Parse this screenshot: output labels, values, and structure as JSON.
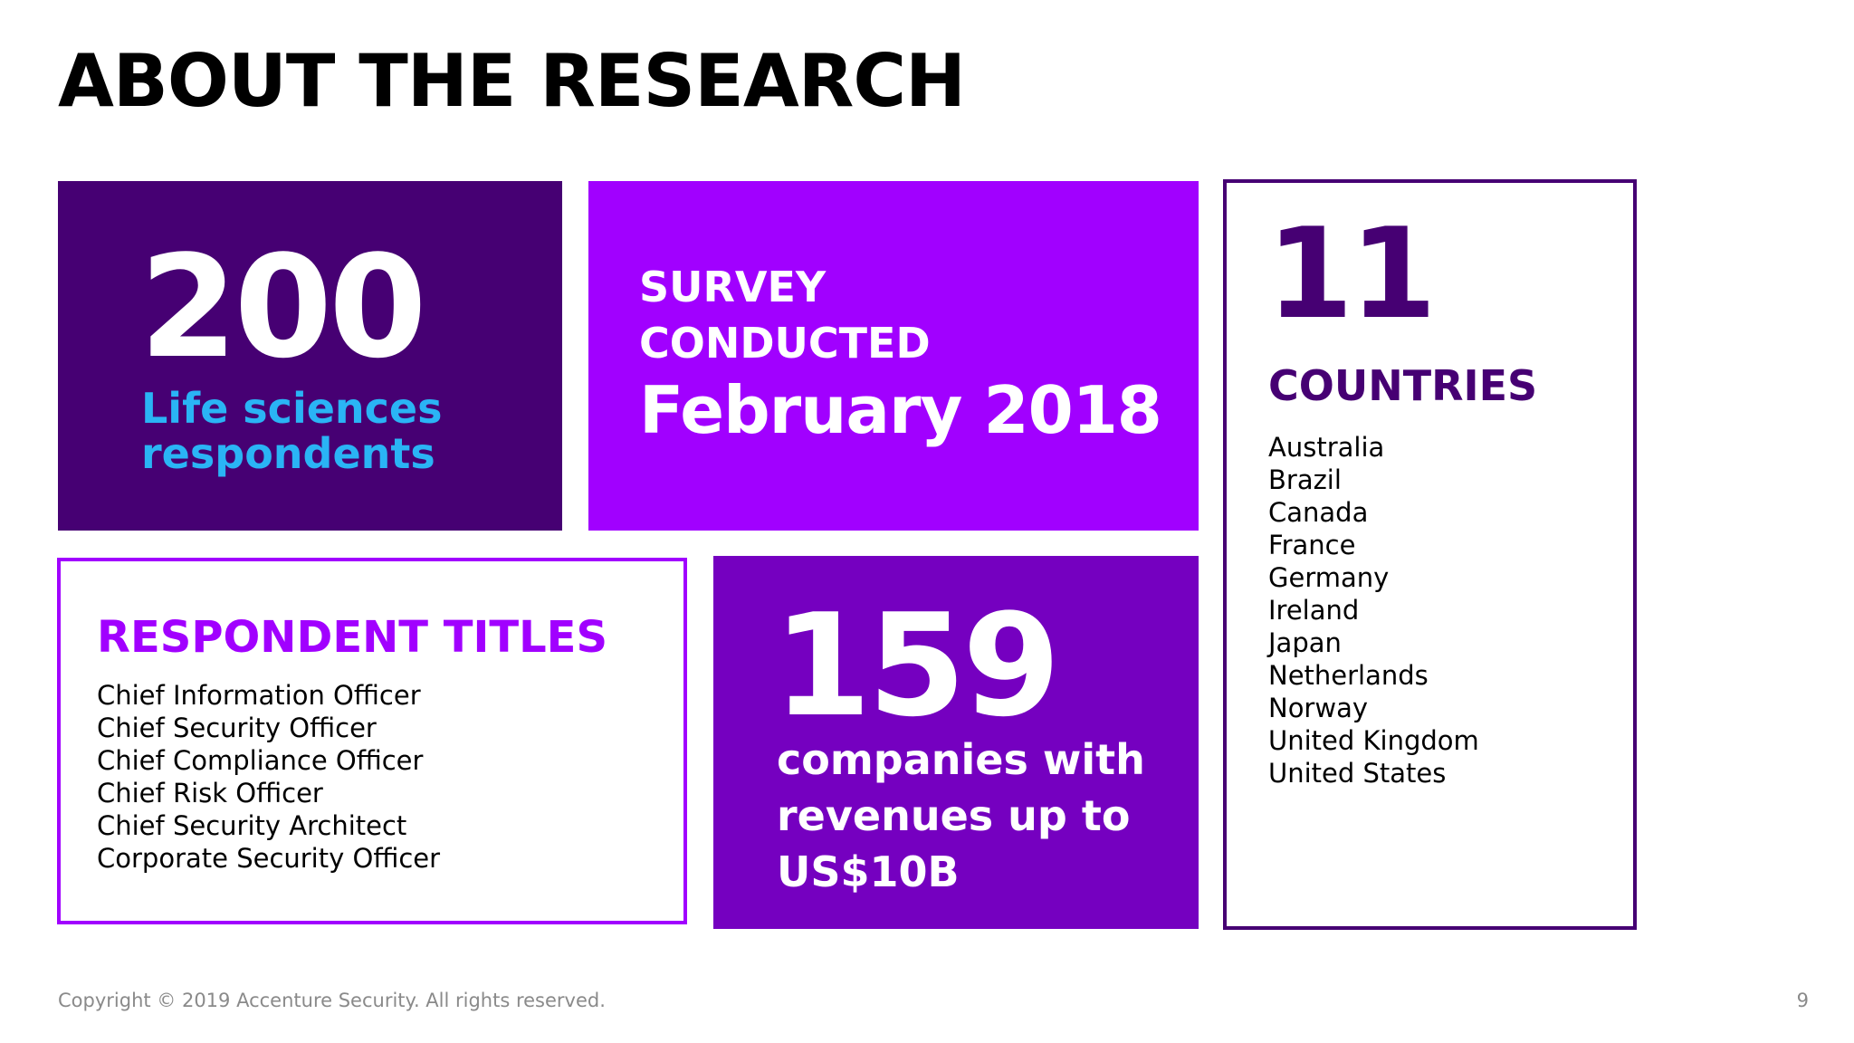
{
  "slide": {
    "title": "ABOUT THE RESEARCH"
  },
  "respondents": {
    "number": "200",
    "label": "Life sciences respondents"
  },
  "survey": {
    "label": "SURVEY\nCONDUCTED",
    "date": "February 2018"
  },
  "countries": {
    "number": "11",
    "label": "COUNTRIES",
    "items": [
      "Australia",
      "Brazil",
      "Canada",
      "France",
      "Germany",
      "Ireland",
      "Japan",
      "Netherlands",
      "Norway",
      "United Kingdom",
      "United States"
    ]
  },
  "titles": {
    "label": "RESPONDENT TITLES",
    "items": [
      "Chief Information Officer",
      "Chief Security Officer",
      "Chief Compliance Officer",
      "Chief Risk Officer",
      "Chief Security Architect",
      "Corporate Security Officer"
    ]
  },
  "companies": {
    "number": "159",
    "label": "companies with revenues up to US$10B"
  },
  "footer": {
    "copyright": "Copyright © 2019 Accenture Security. All rights reserved.",
    "page_number": "9"
  },
  "colors": {
    "dark_purple": "#460073",
    "bright_purple": "#a100ff",
    "medium_purple": "#7500c0",
    "cyan": "#2ab4f5"
  }
}
